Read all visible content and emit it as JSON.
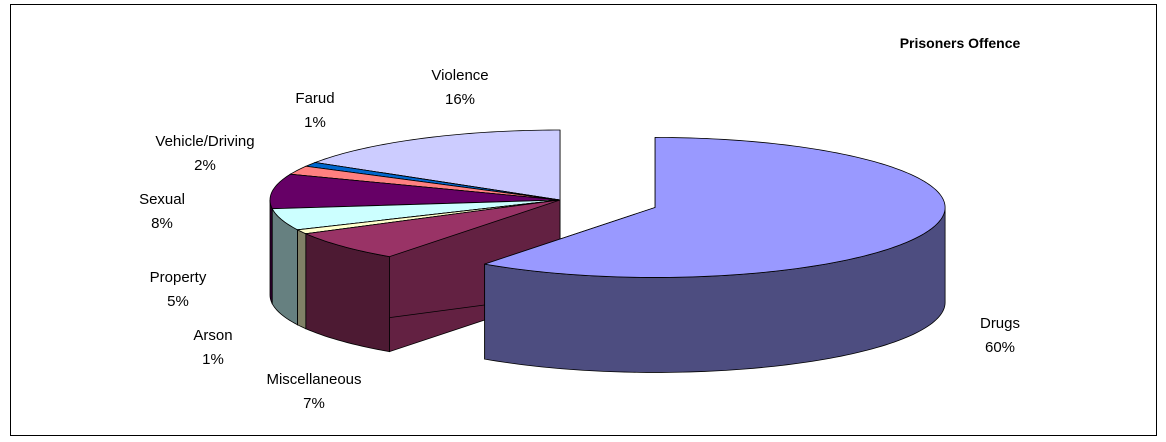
{
  "chart_data": {
    "type": "pie",
    "title": "Prisoners Offence",
    "slices": [
      {
        "label": "Drugs",
        "value": 60,
        "display": "60%",
        "color": "#9999ff",
        "exploded": true
      },
      {
        "label": "Miscellaneous",
        "value": 7,
        "display": "7%",
        "color": "#993366",
        "exploded": false
      },
      {
        "label": "Arson",
        "value": 1,
        "display": "1%",
        "color": "#ffffcc",
        "exploded": false
      },
      {
        "label": "Property",
        "value": 5,
        "display": "5%",
        "color": "#ccffff",
        "exploded": false
      },
      {
        "label": "Sexual",
        "value": 8,
        "display": "8%",
        "color": "#660066",
        "exploded": false
      },
      {
        "label": "Vehicle/Driving",
        "value": 2,
        "display": "2%",
        "color": "#ff8080",
        "exploded": false
      },
      {
        "label": "Farud",
        "value": 1,
        "display": "1%",
        "color": "#0066cc",
        "exploded": false
      },
      {
        "label": "Violence",
        "value": 16,
        "display": "16%",
        "color": "#ccccff",
        "exploded": false
      }
    ],
    "legend": "none",
    "style": "3d-exploded-pie"
  }
}
